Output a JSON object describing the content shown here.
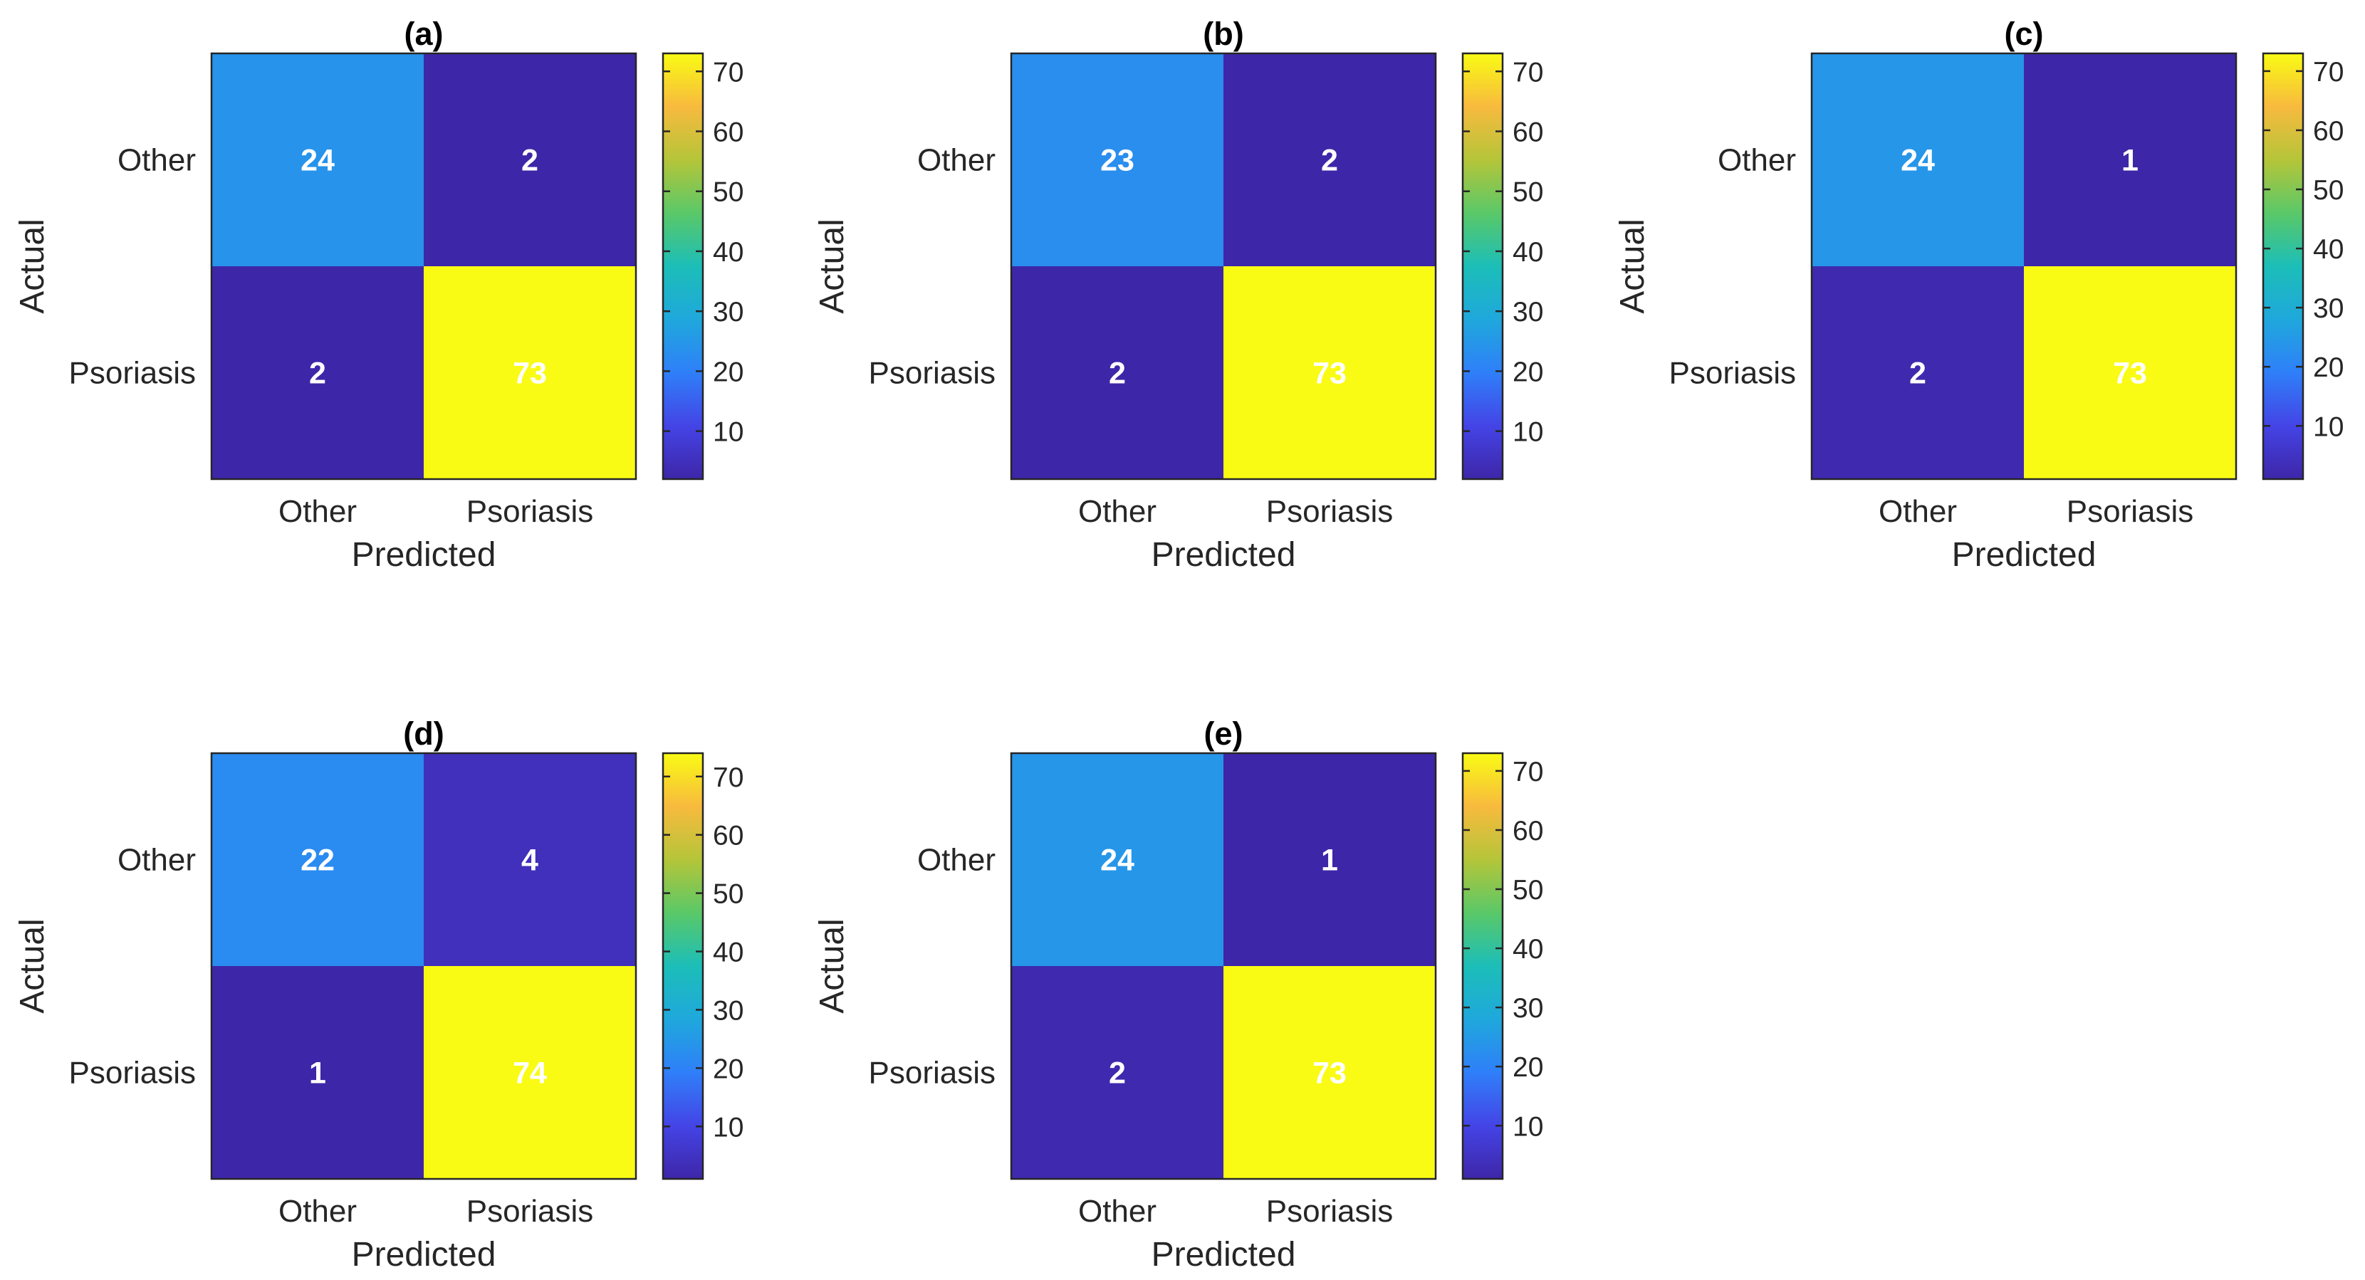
{
  "colors": {
    "low": "#3e26a8",
    "cell_text": "#ffffff",
    "axis": "#262626",
    "colormap_stops": [
      "#3e26a8",
      "#4444e6",
      "#2f7ff9",
      "#1fa8dc",
      "#1cbeb8",
      "#5ac868",
      "#b5c539",
      "#f8ba3e",
      "#f9fb14"
    ]
  },
  "chart_data": [
    {
      "type": "heatmap",
      "title": "(a)",
      "xlabel": "Predicted",
      "ylabel": "Actual",
      "x_categories": [
        "Other",
        "Psoriasis"
      ],
      "y_categories": [
        "Other",
        "Psoriasis"
      ],
      "matrix": [
        [
          24,
          2
        ],
        [
          2,
          73
        ]
      ],
      "clim": [
        2,
        73
      ],
      "colorbar_ticks": [
        10,
        20,
        30,
        40,
        50,
        60,
        70
      ],
      "colorbar_labels": [
        "10",
        "20",
        "30",
        "40",
        "50",
        "60",
        "70"
      ]
    },
    {
      "type": "heatmap",
      "title": "(b)",
      "xlabel": "Predicted",
      "ylabel": "Actual",
      "x_categories": [
        "Other",
        "Psoriasis"
      ],
      "y_categories": [
        "Other",
        "Psoriasis"
      ],
      "matrix": [
        [
          23,
          2
        ],
        [
          2,
          73
        ]
      ],
      "clim": [
        2,
        73
      ],
      "colorbar_ticks": [
        10,
        20,
        30,
        40,
        50,
        60,
        70
      ],
      "colorbar_labels": [
        "10",
        "20",
        "30",
        "40",
        "50",
        "60",
        "70"
      ]
    },
    {
      "type": "heatmap",
      "title": "(c)",
      "xlabel": "Predicted",
      "ylabel": "Actual",
      "x_categories": [
        "Other",
        "Psoriasis"
      ],
      "y_categories": [
        "Other",
        "Psoriasis"
      ],
      "matrix": [
        [
          24,
          1
        ],
        [
          2,
          73
        ]
      ],
      "clim": [
        1,
        73
      ],
      "colorbar_ticks": [
        10,
        20,
        30,
        40,
        50,
        60,
        70
      ],
      "colorbar_labels": [
        "10",
        "20",
        "30",
        "40",
        "50",
        "60",
        "70"
      ]
    },
    {
      "type": "heatmap",
      "title": "(d)",
      "xlabel": "Predicted",
      "ylabel": "Actual",
      "x_categories": [
        "Other",
        "Psoriasis"
      ],
      "y_categories": [
        "Other",
        "Psoriasis"
      ],
      "matrix": [
        [
          22,
          4
        ],
        [
          1,
          74
        ]
      ],
      "clim": [
        1,
        74
      ],
      "colorbar_ticks": [
        10,
        20,
        30,
        40,
        50,
        60,
        70
      ],
      "colorbar_labels": [
        "10",
        "20",
        "30",
        "40",
        "50",
        "60",
        "70"
      ]
    },
    {
      "type": "heatmap",
      "title": "(e)",
      "xlabel": "Predicted",
      "ylabel": "Actual",
      "x_categories": [
        "Other",
        "Psoriasis"
      ],
      "y_categories": [
        "Other",
        "Psoriasis"
      ],
      "matrix": [
        [
          24,
          1
        ],
        [
          2,
          73
        ]
      ],
      "clim": [
        1,
        73
      ],
      "colorbar_ticks": [
        10,
        20,
        30,
        40,
        50,
        60,
        70
      ],
      "colorbar_labels": [
        "10",
        "20",
        "30",
        "40",
        "50",
        "60",
        "70"
      ]
    }
  ]
}
